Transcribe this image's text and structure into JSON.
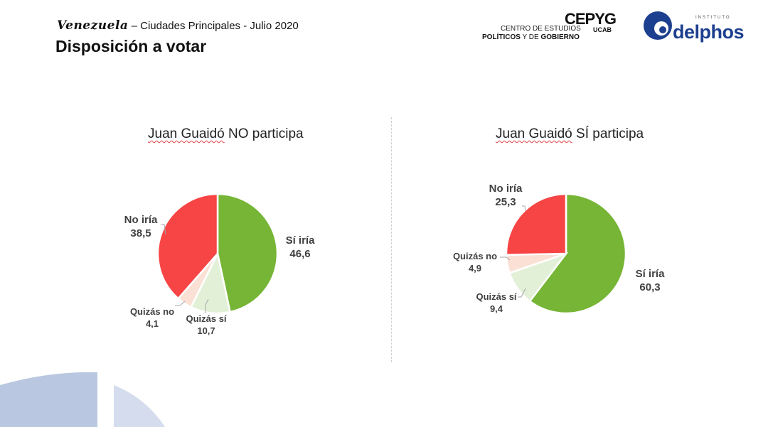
{
  "header": {
    "country": "Venezuela",
    "subtitle": "– Ciudades Principales  -  Julio 2020",
    "title": "Disposición a votar"
  },
  "logos": {
    "cepyg": {
      "word": "CEPYG",
      "line1": "CENTRO DE ESTUDIOS",
      "ucab": "UCAB",
      "line2_a": "POLÍTICOS",
      "line2_b": " Y DE ",
      "line2_c": "GOBIERNO"
    },
    "delphos": {
      "small": "INSTITUTO",
      "word": "delphos"
    }
  },
  "colors": {
    "si_iria": "#76b535",
    "quizas_si": "#e3f0d8",
    "quizas_no": "#fbe0d6",
    "no_iria": "#f74444",
    "deco_blue": "#b9c8e0"
  },
  "chart_data": [
    {
      "type": "pie",
      "title_name": "Juan Guaidó",
      "title_rest": " NO participa",
      "series": [
        {
          "name": "Sí iría",
          "value": 46.6,
          "label_value": "46,6"
        },
        {
          "name": "Quizás sí",
          "value": 10.7,
          "label_value": "10,7"
        },
        {
          "name": "Quizás no",
          "value": 4.1,
          "label_value": "4,1"
        },
        {
          "name": "No iría",
          "value": 38.5,
          "label_value": "38,5"
        }
      ]
    },
    {
      "type": "pie",
      "title_name": "Juan Guaidó",
      "title_rest": " SÍ participa",
      "series": [
        {
          "name": "Sí iría",
          "value": 60.3,
          "label_value": "60,3"
        },
        {
          "name": "Quizás sí",
          "value": 9.4,
          "label_value": "9,4"
        },
        {
          "name": "Quizás no",
          "value": 4.9,
          "label_value": "4,9"
        },
        {
          "name": "No iría",
          "value": 25.3,
          "label_value": "25,3"
        }
      ]
    }
  ]
}
